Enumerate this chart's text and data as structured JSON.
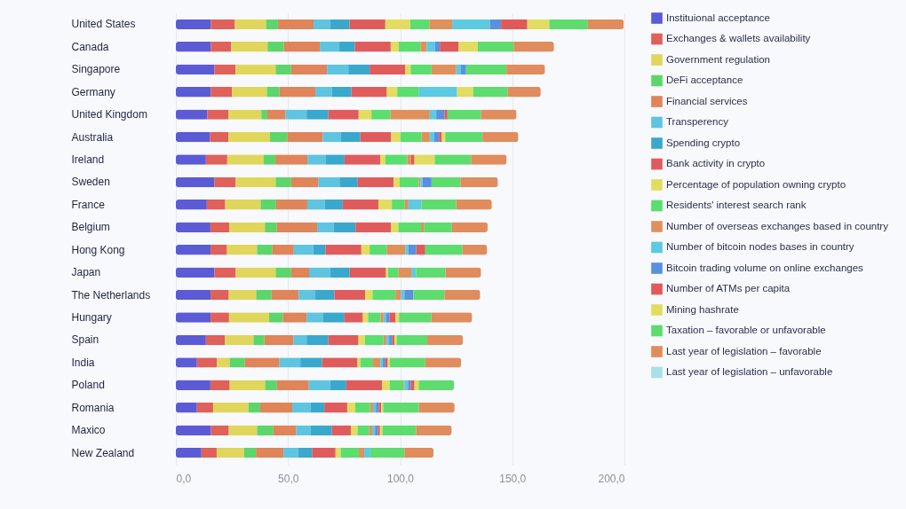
{
  "chart_data": {
    "type": "bar",
    "orientation": "horizontal",
    "stacked": true,
    "legend": "right",
    "grid": "x",
    "categories": [
      "United States",
      "Canada",
      "Singapore",
      "Germany",
      "United Kingdom",
      "Australia",
      "Ireland",
      "Sweden",
      "France",
      "Belgium",
      "Hong Kong",
      "Japan",
      "The Netherlands",
      "Hungary",
      "Spain",
      "India",
      "Poland",
      "Romania",
      "Maxico",
      "New Zealand"
    ],
    "xlim": [
      0,
      200
    ],
    "xticks": [
      {
        "value": 0,
        "label": "0,0"
      },
      {
        "value": 50,
        "label": "50,0"
      },
      {
        "value": 100,
        "label": "100,0"
      },
      {
        "value": 150,
        "label": "150,0"
      },
      {
        "value": 200,
        "label": "200,0"
      }
    ],
    "series": [
      {
        "name": "Instituional acceptance",
        "color": "#5b5bd6",
        "values": [
          15.6,
          15.6,
          17.2,
          15.6,
          14.0,
          15.2,
          13.4,
          17.2,
          13.8,
          15.4,
          15.5,
          17.2,
          15.5,
          15.5,
          13.4,
          9.4,
          15.4,
          9.4,
          15.6,
          11.4
        ]
      },
      {
        "name": "Exchanges & wallets availability",
        "color": "#e0605a",
        "values": [
          10.7,
          9.0,
          9.4,
          9.4,
          9.5,
          8.2,
          9.5,
          9.5,
          8.2,
          8.4,
          7.3,
          9.5,
          8.1,
          8.2,
          8.5,
          8.9,
          8.6,
          7.2,
          8.0,
          6.8
        ]
      },
      {
        "name": "Government regulation",
        "color": "#e0d65c",
        "values": [
          13.9,
          16.3,
          17.9,
          15.6,
          14.6,
          18.6,
          16.2,
          17.8,
          15.8,
          15.9,
          13.4,
          17.8,
          12.2,
          17.9,
          12.7,
          5.7,
          15.8,
          15.8,
          12.6,
          12.2
        ]
      },
      {
        "name": "DeFi acceptance",
        "color": "#5cd66a",
        "values": [
          5.3,
          7.3,
          6.9,
          5.6,
          2.7,
          7.6,
          5.3,
          6.9,
          6.9,
          5.3,
          6.9,
          6.9,
          6.9,
          6.2,
          4.9,
          6.8,
          5.3,
          5.2,
          7.3,
          5.3
        ]
      },
      {
        "name": "Financial services",
        "color": "#e0845a",
        "values": [
          15.9,
          16.0,
          16.0,
          16.0,
          8.1,
          15.9,
          14.3,
          12.2,
          13.9,
          18.0,
          9.5,
          8.0,
          12.1,
          10.5,
          13.0,
          15.4,
          14.2,
          14.3,
          10.1,
          12.3
        ]
      },
      {
        "name": "Transperency",
        "color": "#5ec4e0",
        "values": [
          7.3,
          8.7,
          9.5,
          7.4,
          9.4,
          8.0,
          8.0,
          9.4,
          7.8,
          7.4,
          8.7,
          9.4,
          7.4,
          7.4,
          5.8,
          9.3,
          9.5,
          8.2,
          6.5,
          6.5
        ]
      },
      {
        "name": "Spending crypto",
        "color": "#3aa8cc",
        "values": [
          8.7,
          6.9,
          9.5,
          8.6,
          9.7,
          8.7,
          8.5,
          8.1,
          8.0,
          9.7,
          5.4,
          8.7,
          8.5,
          9.5,
          9.7,
          9.7,
          7.2,
          6.1,
          9.5,
          6.2
        ]
      },
      {
        "name": "Bank activity in crypto",
        "color": "#e05c5c",
        "values": [
          16.0,
          16.0,
          15.9,
          15.9,
          13.5,
          13.8,
          15.9,
          16.0,
          15.9,
          15.8,
          16.0,
          16.2,
          13.8,
          8.2,
          13.4,
          15.8,
          16.0,
          10.2,
          8.5,
          10.5
        ]
      },
      {
        "name": "Percentage of population owning crypto",
        "color": "#e4dc60",
        "values": [
          11.1,
          3.6,
          2.4,
          4.6,
          5.7,
          4.1,
          2.3,
          2.7,
          6.0,
          3.3,
          3.7,
          0.9,
          3.2,
          2.3,
          2.9,
          1.3,
          3.3,
          3.6,
          2.9,
          2.3
        ]
      },
      {
        "name": "Residents' interest search rank",
        "color": "#5ade6e",
        "values": [
          8.5,
          9.7,
          9.3,
          9.7,
          8.5,
          9.5,
          9.8,
          8.5,
          5.8,
          10.1,
          7.6,
          4.6,
          10.2,
          5.6,
          8.2,
          5.6,
          6.2,
          6.6,
          5.2,
          8.1
        ]
      },
      {
        "name": "Number of overseas exchanges based in country",
        "color": "#e0905a",
        "values": [
          10.2,
          2.7,
          11.0,
          0,
          17.5,
          3.6,
          1.7,
          0.8,
          1.6,
          1.3,
          8.3,
          5.8,
          2.5,
          1.3,
          1.3,
          3.3,
          0.5,
          1.3,
          1.3,
          2.4
        ]
      },
      {
        "name": "Number of bitcoin nodes bases in country",
        "color": "#5ccae0",
        "values": [
          16.8,
          3.8,
          2.1,
          17.0,
          2.9,
          2.0,
          0,
          0.9,
          5.8,
          0,
          1.3,
          2.1,
          1.5,
          1.1,
          1.3,
          1.1,
          1.5,
          1.3,
          1.3,
          2.7
        ]
      },
      {
        "name": "Bitcoin trading volume on online exchanges",
        "color": "#5a90e0",
        "values": [
          5.0,
          2.1,
          2.3,
          0,
          3.7,
          2.1,
          0,
          4.0,
          0,
          0,
          3.6,
          0,
          4.0,
          1.6,
          1.3,
          1.1,
          1.3,
          1.3,
          1.3,
          0
        ]
      },
      {
        "name": "Number of ATMs per capita",
        "color": "#e05a5a",
        "values": [
          11.7,
          8.4,
          0,
          0,
          1.3,
          1.3,
          1.5,
          0,
          0,
          0,
          4.0,
          0,
          0,
          2.7,
          1.1,
          1.1,
          1.6,
          1.1,
          0.9,
          0
        ]
      },
      {
        "name": "Mining hashrate",
        "color": "#e2dc60",
        "values": [
          9.8,
          8.5,
          0,
          7.2,
          0,
          1.5,
          9.0,
          0,
          0,
          0,
          0,
          0,
          0,
          1.5,
          0.9,
          0.9,
          1.9,
          0.8,
          1.1,
          0
        ]
      },
      {
        "name": "Taxation – favorable or unfavorable",
        "color": "#5edc6e",
        "values": [
          17.2,
          16.0,
          18.0,
          15.4,
          15.0,
          16.6,
          16.2,
          12.9,
          15.5,
          12.5,
          16.6,
          13.1,
          13.9,
          14.4,
          13.7,
          15.8,
          15.8,
          16.0,
          15.0,
          15.2
        ]
      },
      {
        "name": "Last year of legislation – favorable",
        "color": "#e08c5c",
        "values": [
          16.0,
          18.0,
          17.2,
          14.7,
          15.8,
          16.0,
          15.9,
          16.7,
          15.9,
          15.9,
          11.0,
          15.9,
          15.9,
          18.2,
          15.9,
          16.0,
          0,
          15.9,
          15.9,
          13.0
        ]
      },
      {
        "name": "Last year of legislation – unfavorable",
        "color": "#a8e0e6",
        "values": [
          0,
          0,
          0,
          0,
          0,
          0,
          0,
          0,
          0,
          0,
          0,
          0,
          0,
          0,
          0,
          0,
          0,
          0,
          0,
          0
        ]
      }
    ]
  }
}
